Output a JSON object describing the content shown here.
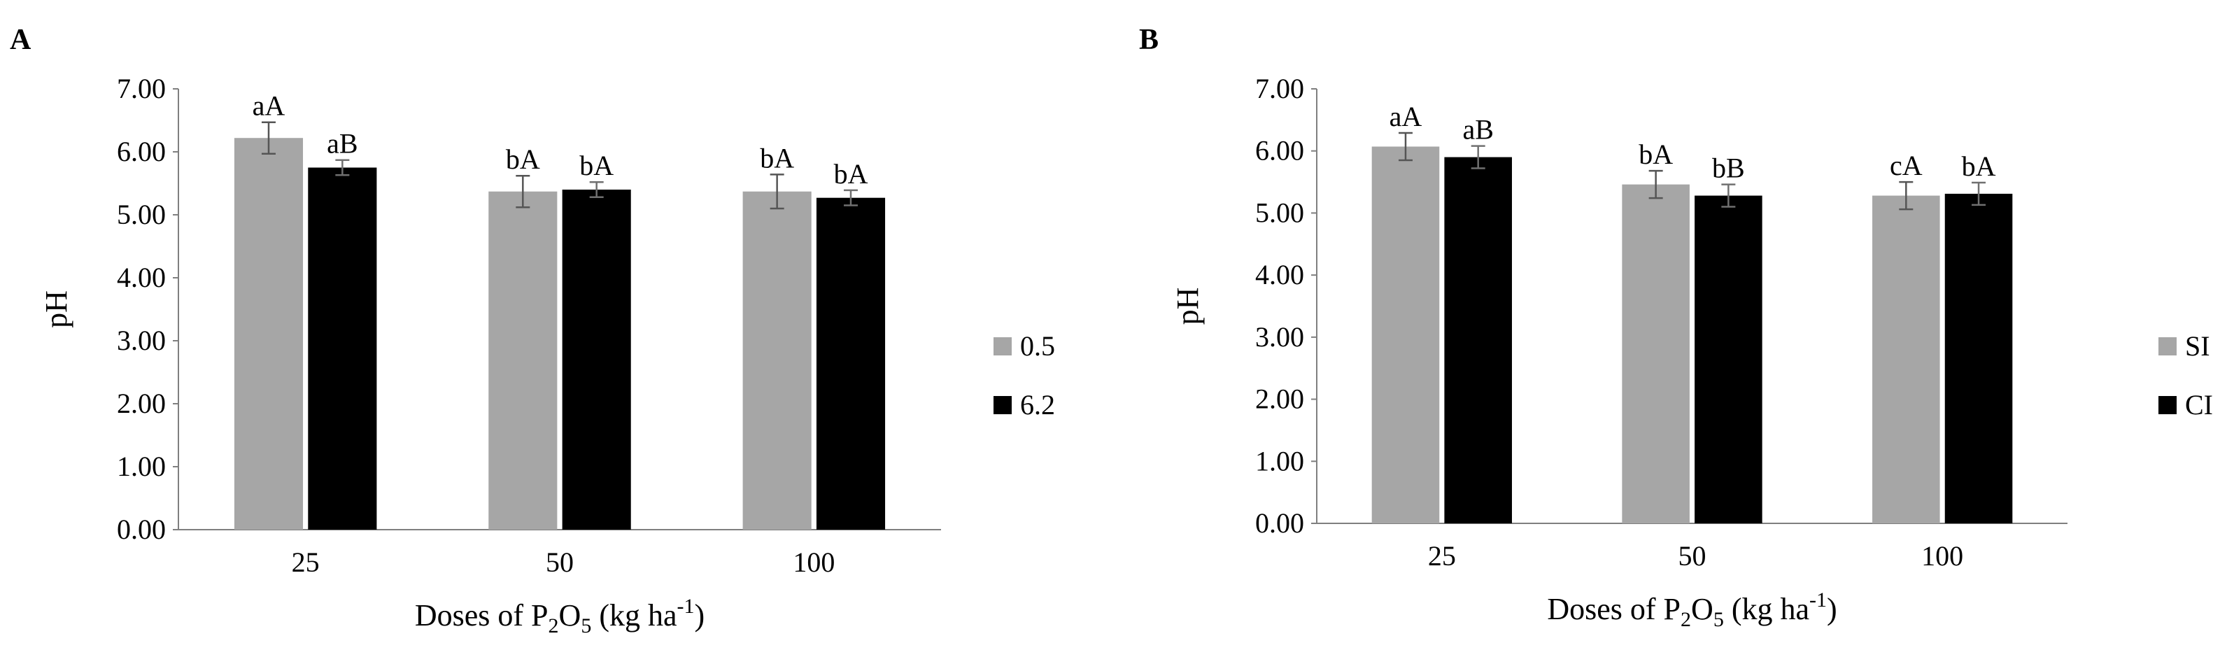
{
  "chart_data": [
    {
      "type": "bar",
      "panel_label": "A",
      "categories": [
        "25",
        "50",
        "100"
      ],
      "series": [
        {
          "name": "0.5",
          "color": "#a6a6a6",
          "values": [
            6.22,
            5.37,
            5.37
          ],
          "errors": [
            0.25,
            0.25,
            0.27
          ],
          "labels": [
            "aA",
            "bA",
            "bA"
          ]
        },
        {
          "name": "6.2",
          "color": "#000000",
          "values": [
            5.75,
            5.4,
            5.27
          ],
          "errors": [
            0.12,
            0.12,
            0.12
          ],
          "labels": [
            "aB",
            "bA",
            "bA"
          ]
        }
      ],
      "xlabel_parts": [
        "Doses of P",
        "2",
        "O",
        "5",
        " (kg ha",
        "-1",
        ")"
      ],
      "ylabel": "pH",
      "ylim": [
        0,
        7
      ],
      "yticks": [
        "0.00",
        "1.00",
        "2.00",
        "3.00",
        "4.00",
        "5.00",
        "6.00",
        "7.00"
      ],
      "legend_position": "right",
      "grid": false
    },
    {
      "type": "bar",
      "panel_label": "B",
      "categories": [
        "25",
        "50",
        "100"
      ],
      "series": [
        {
          "name": "SI",
          "color": "#a6a6a6",
          "values": [
            6.07,
            5.46,
            5.28
          ],
          "errors": [
            0.22,
            0.22,
            0.22
          ],
          "labels": [
            "aA",
            "bA",
            "cA"
          ]
        },
        {
          "name": "CI",
          "color": "#000000",
          "values": [
            5.9,
            5.28,
            5.31
          ],
          "errors": [
            0.18,
            0.18,
            0.18
          ],
          "labels": [
            "aB",
            "bB",
            "bA"
          ]
        }
      ],
      "xlabel_parts": [
        "Doses of P",
        "2",
        "O",
        "5",
        " (kg ha",
        "-1",
        ")"
      ],
      "ylabel": "pH",
      "ylim": [
        0,
        7
      ],
      "yticks": [
        "0.00",
        "1.00",
        "2.00",
        "3.00",
        "4.00",
        "5.00",
        "6.00",
        "7.00"
      ],
      "legend_position": "right",
      "grid": false
    }
  ]
}
